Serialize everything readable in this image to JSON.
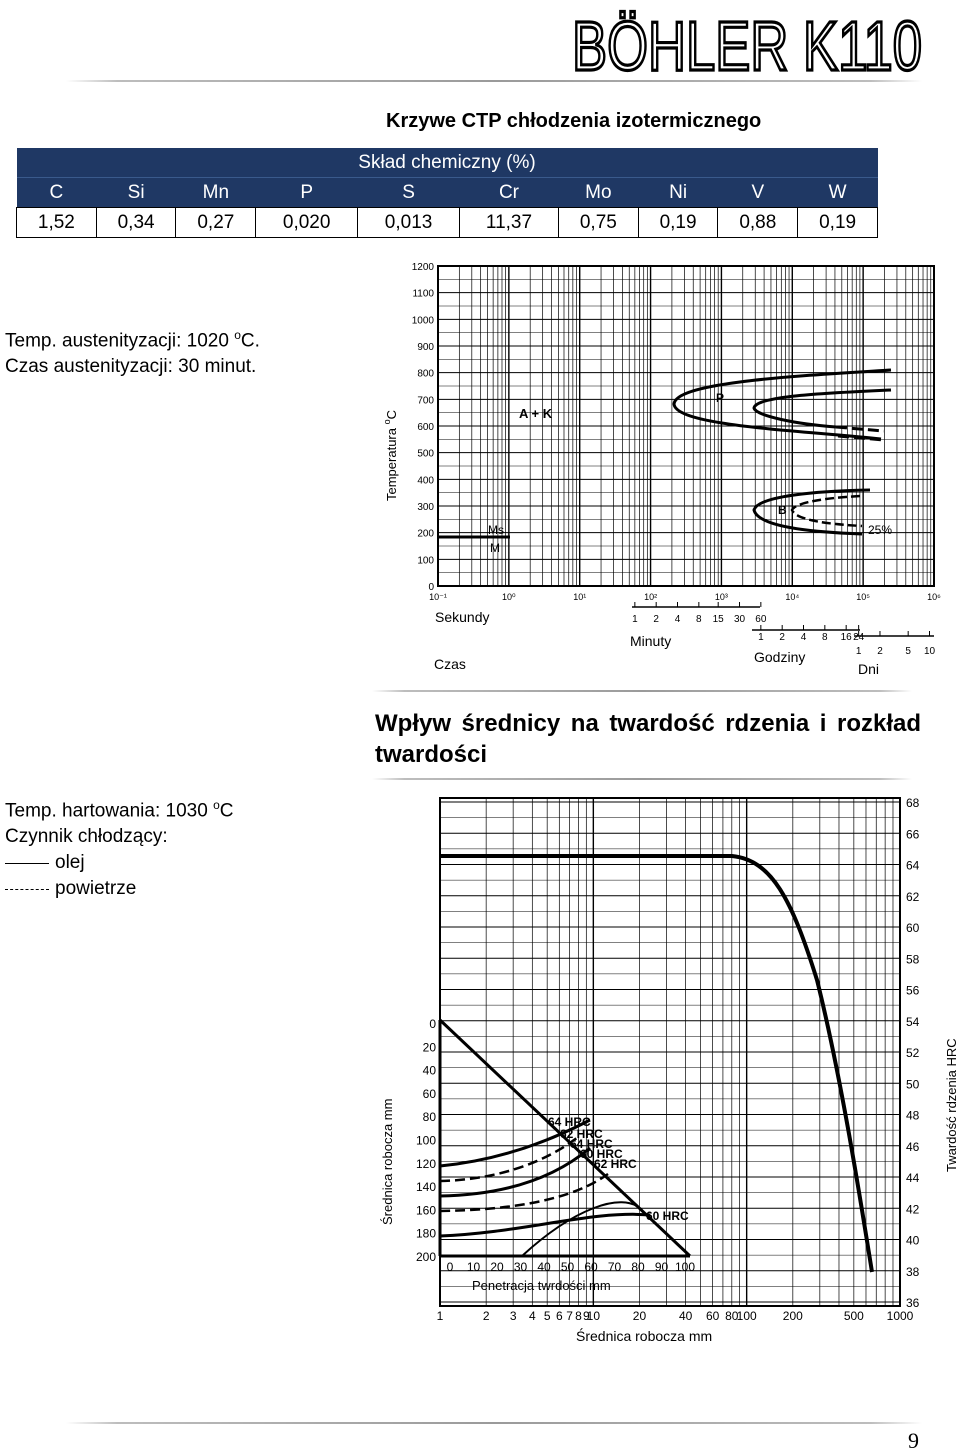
{
  "header": {
    "logo_text": "BÖHLER K110"
  },
  "ctp": {
    "title": "Krzywe CTP chłodzenia izotermicznego"
  },
  "composition": {
    "title": "Skład chemiczny (%)",
    "elements": [
      "C",
      "Si",
      "Mn",
      "P",
      "S",
      "Cr",
      "Mo",
      "Ni",
      "V",
      "W"
    ],
    "values": [
      "1,52",
      "0,34",
      "0,27",
      "0,020",
      "0,013",
      "11,37",
      "0,75",
      "0,19",
      "0,88",
      "0,19"
    ]
  },
  "austenitization": {
    "temp_text": "Temp. austenityzacji: 1020 ",
    "temp_sup": "o",
    "temp_unit": "C.",
    "time_text": "Czas austenityzacji: 30 minut."
  },
  "ttt_chart": {
    "y_axis_label": "Temperatura ",
    "y_axis_sup": "o",
    "y_axis_unit": "C",
    "y_ticks": [
      "1200",
      "1100",
      "1000",
      "900",
      "800",
      "700",
      "600",
      "500",
      "400",
      "300",
      "200",
      "100",
      "0"
    ],
    "x_ticks": [
      "10⁻¹",
      "10⁰",
      "10¹",
      "10²",
      "10³",
      "10⁴",
      "10⁵",
      "10⁶"
    ],
    "seconds_label": "Sekundy",
    "minutes_label": "Minuty",
    "minutes_ticks": [
      "1",
      "2",
      "4",
      "8",
      "15",
      "30",
      "60"
    ],
    "hours_label": "Godziny",
    "hours_ticks": [
      "1",
      "2",
      "4",
      "8",
      "16",
      "24"
    ],
    "days_label": "Dni",
    "days_ticks": [
      "1",
      "2",
      "5",
      "10"
    ],
    "time_label": "Czas",
    "labels": {
      "ak": "A + K",
      "p": "P",
      "b": "B",
      "pct": "25%",
      "ms": "Ms",
      "m": "M"
    }
  },
  "hardening": {
    "title": "Wpływ średnicy na twardość rdzenia i rozkład twardości",
    "temp_text": "Temp. hartowania: 1030 ",
    "temp_sup": "o",
    "temp_unit": "C",
    "medium_label": "Czynnik chłodzący:",
    "legend_oil": "olej",
    "legend_air": "powietrze"
  },
  "hardness_chart": {
    "right_axis_label": "Twardość rdzenia HRC",
    "hrc_ticks": [
      "68",
      "66",
      "64",
      "62",
      "60",
      "58",
      "56",
      "54",
      "52",
      "50",
      "48",
      "46",
      "44",
      "42",
      "40",
      "38",
      "36"
    ],
    "left_axis_label": "Średnica robocza mm",
    "diam_ticks": [
      "0",
      "20",
      "40",
      "60",
      "80",
      "100",
      "120",
      "140",
      "160",
      "180",
      "200"
    ],
    "pen_ticks": [
      "0",
      "10",
      "20",
      "30",
      "40",
      "50",
      "60",
      "70",
      "80",
      "90",
      "100"
    ],
    "pen_label": "Penetracja twrdości mm",
    "bottom_ticks": [
      "1",
      "2",
      "3",
      "4",
      "5",
      "6",
      "7",
      "8",
      "9",
      "10",
      "20",
      "40",
      "60",
      "80",
      "100",
      "200",
      "500",
      "1000"
    ],
    "bottom_label": "Średnica robocza mm",
    "curve_labels": [
      "64 HRC",
      "62 HRC",
      "64 HRC",
      "60 HRC",
      "62 HRC",
      "60 HRC"
    ]
  },
  "footer": {
    "page_number": "9"
  }
}
